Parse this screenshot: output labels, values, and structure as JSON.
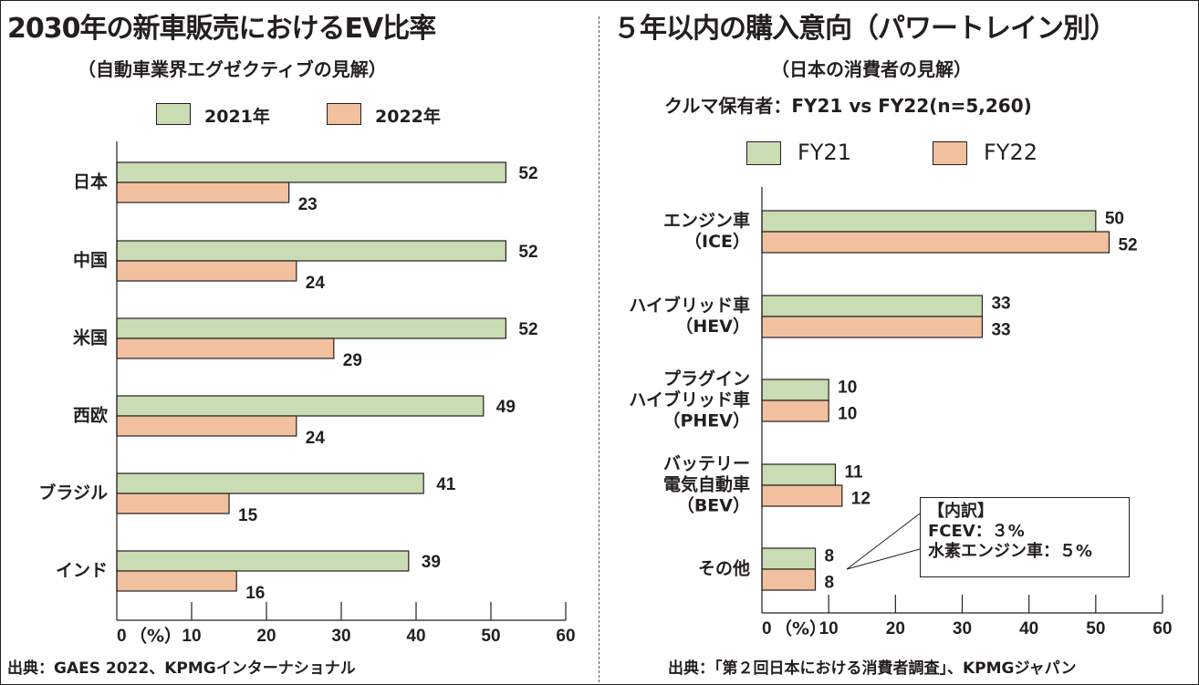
{
  "colors": {
    "series1": "#c9dcb3",
    "series2": "#f1c19f",
    "ink": "#231f20"
  },
  "chart_data": [
    {
      "type": "bar",
      "orientation": "horizontal",
      "title": "2030年の新車販売におけるEV比率",
      "subtitle": "（自動車業界エグゼクティブの見解）",
      "categories": [
        "日本",
        "中国",
        "米国",
        "西欧",
        "ブラジル",
        "インド"
      ],
      "series": [
        {
          "name": "2021年",
          "values": [
            52,
            52,
            52,
            49,
            41,
            39
          ]
        },
        {
          "name": "2022年",
          "values": [
            23,
            24,
            29,
            24,
            15,
            16
          ]
        }
      ],
      "xlabel": "（%）",
      "xticks": [
        "0",
        "10",
        "20",
        "30",
        "40",
        "50",
        "60"
      ],
      "xlim": [
        0,
        60
      ],
      "legend": "top-center",
      "grid": false,
      "source": "出典：GAES 2022、KPMGインターナショナル"
    },
    {
      "type": "bar",
      "orientation": "horizontal",
      "title": "５年以内の購入意向（パワートレイン別）",
      "subtitle": "（日本の消費者の見解）",
      "subtitle2": "クルマ保有者：FY21 vs FY22(n=5,260)",
      "categories": [
        "エンジン車\n（ICE）",
        "ハイブリッド車\n（HEV）",
        "プラグイン\nハイブリッド車\n（PHEV）",
        "バッテリー\n電気自動車\n（BEV）",
        "その他"
      ],
      "series": [
        {
          "name": "FY21",
          "values": [
            50,
            33,
            10,
            11,
            8
          ]
        },
        {
          "name": "FY22",
          "values": [
            52,
            33,
            10,
            12,
            8
          ]
        }
      ],
      "xlabel": "（%）",
      "xticks": [
        "0",
        "10",
        "20",
        "30",
        "40",
        "50",
        "60"
      ],
      "xlim": [
        0,
        60
      ],
      "legend": "top-center",
      "grid": false,
      "annotation": {
        "target": "その他",
        "lines": [
          "【内訳】",
          "FCEV：３%",
          "水素エンジン車：５%"
        ]
      },
      "source": "出典：「第２回日本における消費者調査」、KPMGジャパン"
    }
  ]
}
